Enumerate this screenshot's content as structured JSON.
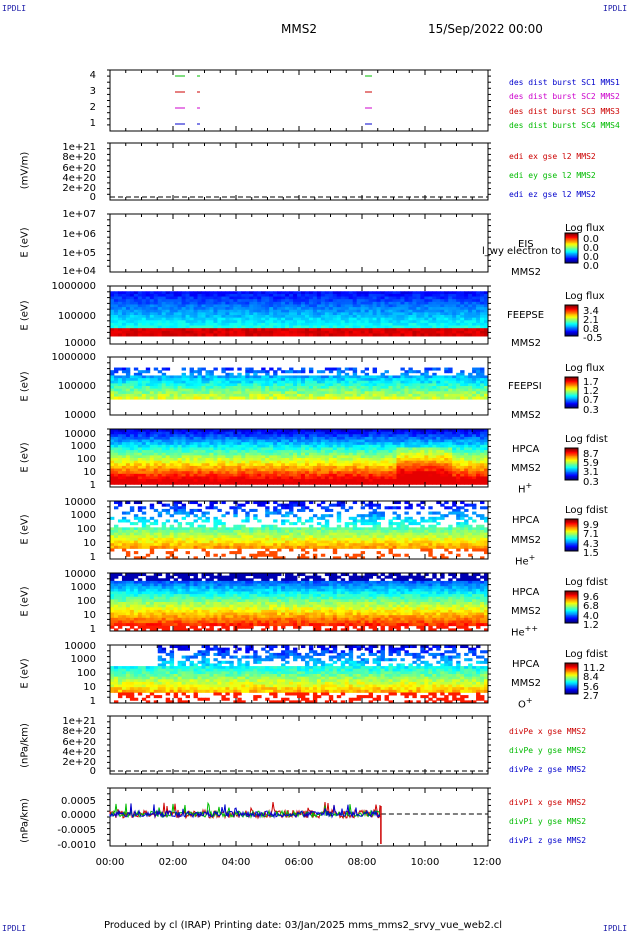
{
  "corners": {
    "tl": "IPDLI",
    "tr": "IPDLI",
    "bl": "IPDLI",
    "br": "IPDLI"
  },
  "header": {
    "spacecraft": "MMS2",
    "date": "15/Sep/2022 00:00"
  },
  "footer": {
    "text": "Produced by cl (IRAP)   Printing date: 03/Jan/2025   mms_mms2_srvy_vue_web2.cl"
  },
  "colors": {
    "c1": "#0000cc",
    "c2": "#cc00cc",
    "c3": "#cc0000",
    "c4": "#00bb00"
  },
  "chart_data": [
    {
      "type": "line",
      "id": "burst",
      "yticks": [
        "4",
        "3",
        "2",
        "1"
      ],
      "legend": [
        "des dist burst SC1 MMS1",
        "des dist burst SC2 MMS2",
        "des dist burst SC3 MMS3",
        "des dist burst SC4 MMS4"
      ]
    },
    {
      "type": "line",
      "id": "edi",
      "ylabel": "(mV/m)",
      "yticks": [
        "1e+21",
        "8e+20",
        "6e+20",
        "4e+20",
        "2e+20",
        "0"
      ],
      "legend": [
        "edi ex gse l2 MMS2",
        "edi ey gse l2 MMS2",
        "edi ez gse l2 MMS2"
      ]
    },
    {
      "type": "heatmap",
      "id": "eis",
      "ylabel": "E (eV)",
      "yticks": [
        "1e+07",
        "1e+06",
        "1e+05",
        "1e+04"
      ],
      "labels": [
        "EIS",
        "MMS2"
      ],
      "overlay": "l_wy electron to",
      "cbar_title": "Log flux",
      "cbar_values": [
        "0.0",
        "0.0",
        "0.0",
        "0.0"
      ]
    },
    {
      "type": "heatmap",
      "id": "feepse",
      "ylabel": "E (eV)",
      "yticks": [
        "1000000",
        "100000",
        "10000"
      ],
      "labels": [
        "FEEPSE",
        "MMS2"
      ],
      "cbar_title": "Log flux",
      "cbar_values": [
        "3.4",
        "2.1",
        "0.8",
        "-0.5"
      ]
    },
    {
      "type": "heatmap",
      "id": "feepsi",
      "ylabel": "E (eV)",
      "yticks": [
        "1000000",
        "100000",
        "10000"
      ],
      "labels": [
        "FEEPSI",
        "MMS2"
      ],
      "cbar_title": "Log flux",
      "cbar_values": [
        "1.7",
        "1.2",
        "0.7",
        "0.3"
      ]
    },
    {
      "type": "heatmap",
      "id": "hpca_h",
      "ylabel": "E (eV)",
      "yticks": [
        "10000",
        "1000",
        "100",
        "10",
        "1"
      ],
      "labels": [
        "HPCA",
        "MMS2",
        "H"
      ],
      "species_sup": "+",
      "cbar_title": "Log fdist",
      "cbar_values": [
        "8.7",
        "5.9",
        "3.1",
        "0.3"
      ]
    },
    {
      "type": "heatmap",
      "id": "hpca_he",
      "ylabel": "E (eV)",
      "yticks": [
        "10000",
        "1000",
        "100",
        "10",
        "1"
      ],
      "labels": [
        "HPCA",
        "MMS2",
        "He"
      ],
      "species_sup": "+",
      "cbar_title": "Log fdist",
      "cbar_values": [
        "9.9",
        "7.1",
        "4.3",
        "1.5"
      ]
    },
    {
      "type": "heatmap",
      "id": "hpca_hepp",
      "ylabel": "E (eV)",
      "yticks": [
        "10000",
        "1000",
        "100",
        "10",
        "1"
      ],
      "labels": [
        "HPCA",
        "MMS2",
        "He"
      ],
      "species_sup": "++",
      "cbar_title": "Log fdist",
      "cbar_values": [
        "9.6",
        "6.8",
        "4.0",
        "1.2"
      ]
    },
    {
      "type": "heatmap",
      "id": "hpca_o",
      "ylabel": "E (eV)",
      "yticks": [
        "10000",
        "1000",
        "100",
        "10",
        "1"
      ],
      "labels": [
        "HPCA",
        "MMS2",
        "O"
      ],
      "species_sup": "+",
      "cbar_title": "Log fdist",
      "cbar_values": [
        "11.2",
        "8.4",
        "5.6",
        "2.7"
      ]
    },
    {
      "type": "line",
      "id": "divpe",
      "ylabel": "(nPa/km)",
      "yticks": [
        "1e+21",
        "8e+20",
        "6e+20",
        "4e+20",
        "2e+20",
        "0"
      ],
      "legend": [
        "divPe x gse MMS2",
        "divPe y gse MMS2",
        "divPe z gse MMS2"
      ]
    },
    {
      "type": "line",
      "id": "divpi",
      "ylabel": "(nPa/km)",
      "yticks": [
        "0.0005",
        "0.0000",
        "-0.0005",
        "-0.0010"
      ],
      "ylim": [
        -0.001,
        0.0007
      ],
      "legend": [
        "divPi x gse MMS2",
        "divPi y gse MMS2",
        "divPi z gse MMS2"
      ]
    }
  ],
  "xaxis": {
    "ticks": [
      "00:00",
      "02:00",
      "04:00",
      "06:00",
      "08:00",
      "10:00",
      "12:00"
    ],
    "range_hours": [
      0,
      12
    ],
    "data_end_hours": 8.6
  }
}
